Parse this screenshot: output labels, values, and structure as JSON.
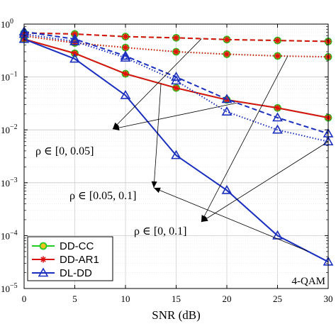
{
  "chart_data": {
    "type": "line",
    "xlabel": "SNR (dB)",
    "ylabel": "",
    "yscale": "log",
    "xlim": [
      0,
      30
    ],
    "ylim": [
      1e-05,
      1
    ],
    "grid": true,
    "legend_position": "bottom-left",
    "x": [
      0,
      5,
      10,
      15,
      20,
      25,
      30
    ],
    "x_tick_labels": [
      "0",
      "5",
      "10",
      "15",
      "20",
      "25",
      "30"
    ],
    "y_tick_labels": [
      {
        "value": 1,
        "base": "10",
        "exp": "0"
      },
      {
        "value": 0.1,
        "base": "10",
        "exp": "−1"
      },
      {
        "value": 0.01,
        "base": "10",
        "exp": "−2"
      },
      {
        "value": 0.001,
        "base": "10",
        "exp": "−3"
      },
      {
        "value": 0.0001,
        "base": "10",
        "exp": "−4"
      },
      {
        "value": 1e-05,
        "base": "10",
        "exp": "−5"
      }
    ],
    "series": [
      {
        "name": "DD-CC",
        "color": "#22cc22",
        "marker": "circle",
        "dash": "dashed",
        "group": "rho ∈ [0, 0.05]",
        "values": [
          0.68,
          0.65,
          0.58,
          0.55,
          0.51,
          0.49,
          0.47
        ]
      },
      {
        "name": "DD-CC",
        "color": "#22cc22",
        "marker": "circle",
        "dash": "solid",
        "group": "rho ∈ [0.05, 0.1]",
        "values": [
          0.52,
          0.28,
          0.115,
          0.062,
          0.037,
          0.026,
          0.017
        ]
      },
      {
        "name": "DD-CC",
        "color": "#22cc22",
        "marker": "circle",
        "dash": "dotted",
        "group": "rho ∈ [0, 0.1]",
        "values": [
          0.6,
          0.44,
          0.36,
          0.3,
          0.27,
          0.25,
          0.24
        ]
      },
      {
        "name": "DD-AR1",
        "color": "#dd1111",
        "marker": "star",
        "dash": "dashed",
        "group": "rho ∈ [0, 0.05]",
        "values": [
          0.68,
          0.65,
          0.58,
          0.55,
          0.51,
          0.49,
          0.47
        ]
      },
      {
        "name": "DD-AR1",
        "color": "#dd1111",
        "marker": "star",
        "dash": "solid",
        "group": "rho ∈ [0.05, 0.1]",
        "values": [
          0.52,
          0.28,
          0.115,
          0.062,
          0.037,
          0.026,
          0.017
        ]
      },
      {
        "name": "DD-AR1",
        "color": "#dd1111",
        "marker": "star",
        "dash": "dotted",
        "group": "rho ∈ [0, 0.1]",
        "values": [
          0.6,
          0.44,
          0.36,
          0.3,
          0.27,
          0.25,
          0.24
        ]
      },
      {
        "name": "DL-DD",
        "color": "#1a2fbf",
        "marker": "triangle",
        "dash": "dashed",
        "group": "rho ∈ [0, 0.05]",
        "values": [
          0.72,
          0.52,
          0.25,
          0.1,
          0.038,
          0.017,
          0.0085
        ]
      },
      {
        "name": "DL-DD",
        "color": "#1a2fbf",
        "marker": "triangle",
        "dash": "solid",
        "group": "rho ∈ [0.05, 0.1]",
        "values": [
          0.52,
          0.22,
          0.045,
          0.0033,
          0.00072,
          0.0001,
          3.2e-05
        ]
      },
      {
        "name": "DL-DD",
        "color": "#1a2fbf",
        "marker": "triangle",
        "dash": "dotted",
        "group": "rho ∈ [0, 0.1]",
        "values": [
          0.65,
          0.47,
          0.23,
          0.085,
          0.022,
          0.01,
          0.006
        ]
      }
    ],
    "legend": [
      {
        "label": "DD-CC",
        "color": "#22cc22",
        "marker": "circle"
      },
      {
        "label": "DD-AR1",
        "color": "#dd1111",
        "marker": "star"
      },
      {
        "label": "DL-DD",
        "color": "#1a2fbf",
        "marker": "triangle"
      }
    ],
    "annotations": [
      {
        "text": "ρ ∈ [0, 0.05]",
        "targets": [
          {
            "series": "DD-CC",
            "group": "rho ∈ [0, 0.05]",
            "x": 17.5
          },
          {
            "series": "DL-DD",
            "group": "rho ∈ [0, 0.05]",
            "x": 21
          }
        ]
      },
      {
        "text": "ρ ∈ [0.05, 0.1]",
        "targets": [
          {
            "series": "DD-CC",
            "group": "rho ∈ [0.05, 0.1]",
            "x": 13.5
          },
          {
            "series": "DL-DD",
            "group": "rho ∈ [0.05, 0.1]",
            "x": 28
          }
        ]
      },
      {
        "text": "ρ ∈ [0, 0.1]",
        "targets": [
          {
            "series": "DD-CC",
            "group": "rho ∈ [0, 0.1]",
            "x": 26
          },
          {
            "series": "DL-DD",
            "group": "rho ∈ [0, 0.1]",
            "x": 30
          }
        ]
      }
    ],
    "corner_label": "4-QAM"
  }
}
